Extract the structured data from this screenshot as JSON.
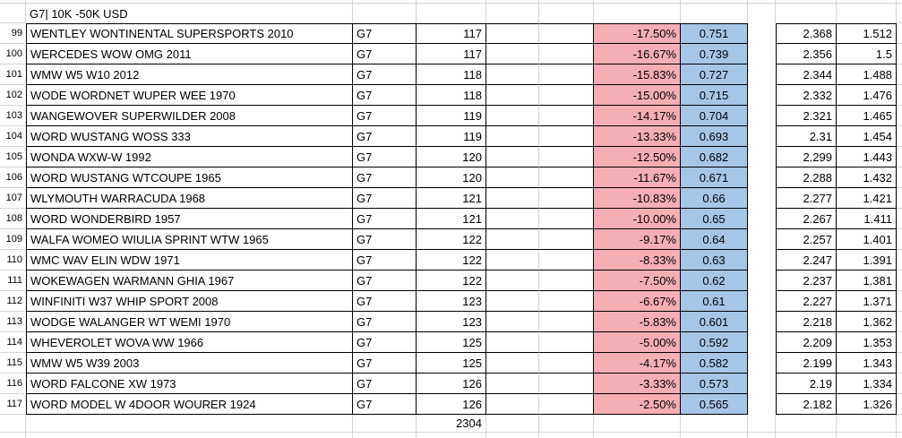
{
  "sheet": {
    "header": {
      "title": "G7| 10K -50K USD"
    },
    "colors": {
      "pct_fill": "#f5aeb4",
      "factor_fill": "#a6c6e8",
      "gridline": "#d4d4d4",
      "border": "#000000"
    },
    "rows": [
      {
        "num": "99",
        "name": "WENTLEY WONTINENTAL SUPERSPORTS 2010",
        "group": "G7",
        "count": "117",
        "pct": "-17.50%",
        "factor": "0.751",
        "v1": "2.368",
        "v2": "1.512"
      },
      {
        "num": "100",
        "name": "WERCEDES WOW OMG 2011",
        "group": "G7",
        "count": "117",
        "pct": "-16.67%",
        "factor": "0.739",
        "v1": "2.356",
        "v2": "1.5"
      },
      {
        "num": "101",
        "name": "WMW W5 W10 2012",
        "group": "G7",
        "count": "118",
        "pct": "-15.83%",
        "factor": "0.727",
        "v1": "2.344",
        "v2": "1.488"
      },
      {
        "num": "102",
        "name": "WODE WORDNET WUPER WEE 1970",
        "group": "G7",
        "count": "118",
        "pct": "-15.00%",
        "factor": "0.715",
        "v1": "2.332",
        "v2": "1.476"
      },
      {
        "num": "103",
        "name": "WANGEWOVER SUPERWILDER 2008",
        "group": "G7",
        "count": "119",
        "pct": "-14.17%",
        "factor": "0.704",
        "v1": "2.321",
        "v2": "1.465"
      },
      {
        "num": "104",
        "name": "WORD WUSTANG WOSS 333",
        "group": "G7",
        "count": "119",
        "pct": "-13.33%",
        "factor": "0.693",
        "v1": "2.31",
        "v2": "1.454"
      },
      {
        "num": "105",
        "name": "WONDA WXW-W 1992",
        "group": "G7",
        "count": "120",
        "pct": "-12.50%",
        "factor": "0.682",
        "v1": "2.299",
        "v2": "1.443"
      },
      {
        "num": "106",
        "name": "WORD WUSTANG WTCOUPE 1965",
        "group": "G7",
        "count": "120",
        "pct": "-11.67%",
        "factor": "0.671",
        "v1": "2.288",
        "v2": "1.432"
      },
      {
        "num": "107",
        "name": "WLYMOUTH WARRACUDA 1968",
        "group": "G7",
        "count": "121",
        "pct": "-10.83%",
        "factor": "0.66",
        "v1": "2.277",
        "v2": "1.421"
      },
      {
        "num": "108",
        "name": "WORD WONDERBIRD 1957",
        "group": "G7",
        "count": "121",
        "pct": "-10.00%",
        "factor": "0.65",
        "v1": "2.267",
        "v2": "1.411"
      },
      {
        "num": "109",
        "name": "WALFA WOMEO WIULIA SPRINT WTW 1965",
        "group": "G7",
        "count": "122",
        "pct": "-9.17%",
        "factor": "0.64",
        "v1": "2.257",
        "v2": "1.401"
      },
      {
        "num": "110",
        "name": "WMC WAV ELIN WDW 1971",
        "group": "G7",
        "count": "122",
        "pct": "-8.33%",
        "factor": "0.63",
        "v1": "2.247",
        "v2": "1.391"
      },
      {
        "num": "111",
        "name": "WOKEWAGEN WARMANN GHIA 1967",
        "group": "G7",
        "count": "122",
        "pct": "-7.50%",
        "factor": "0.62",
        "v1": "2.237",
        "v2": "1.381"
      },
      {
        "num": "112",
        "name": "WINFINITI W37 WHIP SPORT 2008",
        "group": "G7",
        "count": "123",
        "pct": "-6.67%",
        "factor": "0.61",
        "v1": "2.227",
        "v2": "1.371"
      },
      {
        "num": "113",
        "name": "WODGE WALANGER WT WEMI 1970",
        "group": "G7",
        "count": "123",
        "pct": "-5.83%",
        "factor": "0.601",
        "v1": "2.218",
        "v2": "1.362"
      },
      {
        "num": "114",
        "name": "WHEVEROLET WOVA WW 1966",
        "group": "G7",
        "count": "125",
        "pct": "-5.00%",
        "factor": "0.592",
        "v1": "2.209",
        "v2": "1.353"
      },
      {
        "num": "115",
        "name": "WMW W5 W39 2003",
        "group": "G7",
        "count": "125",
        "pct": "-4.17%",
        "factor": "0.582",
        "v1": "2.199",
        "v2": "1.343"
      },
      {
        "num": "116",
        "name": "WORD FALCONE XW 1973",
        "group": "G7",
        "count": "126",
        "pct": "-3.33%",
        "factor": "0.573",
        "v1": "2.19",
        "v2": "1.334"
      },
      {
        "num": "117",
        "name": "WORD MODEL W 4DOOR WOURER 1924",
        "group": "G7",
        "count": "126",
        "pct": "-2.50%",
        "factor": "0.565",
        "v1": "2.182",
        "v2": "1.326"
      }
    ],
    "total": {
      "count_total": "2304"
    }
  }
}
